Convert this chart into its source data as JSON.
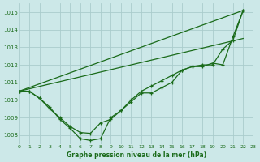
{
  "title": "Graphe pression niveau de la mer (hPa)",
  "bg_color": "#cce8e8",
  "grid_color": "#aacccc",
  "line_color": "#1a6b1a",
  "xlim": [
    0,
    23
  ],
  "ylim": [
    1007.5,
    1015.5
  ],
  "yticks": [
    1008,
    1009,
    1010,
    1011,
    1012,
    1013,
    1014,
    1015
  ],
  "xticks": [
    0,
    1,
    2,
    3,
    4,
    5,
    6,
    7,
    8,
    9,
    10,
    11,
    12,
    13,
    14,
    15,
    16,
    17,
    18,
    19,
    20,
    21,
    22,
    23
  ],
  "curve1_x": [
    0,
    1,
    2,
    3,
    4,
    5,
    6,
    7,
    8,
    9,
    10,
    11,
    12,
    13,
    14,
    15,
    16,
    17,
    18,
    19,
    20,
    21,
    22
  ],
  "curve1_y": [
    1010.5,
    1010.5,
    1010.1,
    1009.6,
    1008.9,
    1008.4,
    1007.8,
    1007.7,
    1007.8,
    1009.0,
    1009.4,
    1010.0,
    1010.5,
    1010.8,
    1011.1,
    1011.4,
    1011.7,
    1011.9,
    1012.0,
    1012.0,
    1012.9,
    1013.4,
    1015.1
  ],
  "curve2_x": [
    0,
    1,
    2,
    3,
    4,
    5,
    6,
    7,
    8,
    9,
    10,
    11,
    12,
    13,
    14,
    15,
    16,
    17,
    18,
    19,
    20,
    21,
    22
  ],
  "curve2_y": [
    1010.5,
    1010.5,
    1010.1,
    1009.5,
    1009.0,
    1008.5,
    1008.15,
    1008.1,
    1008.7,
    1008.9,
    1009.4,
    1009.9,
    1010.4,
    1010.4,
    1010.7,
    1011.0,
    1011.7,
    1011.9,
    1011.9,
    1012.1,
    1012.0,
    1013.6,
    1015.1
  ],
  "trend1_x": [
    0,
    22
  ],
  "trend1_y": [
    1010.5,
    1015.1
  ],
  "trend2_x": [
    0,
    22
  ],
  "trend2_y": [
    1010.5,
    1013.5
  ]
}
